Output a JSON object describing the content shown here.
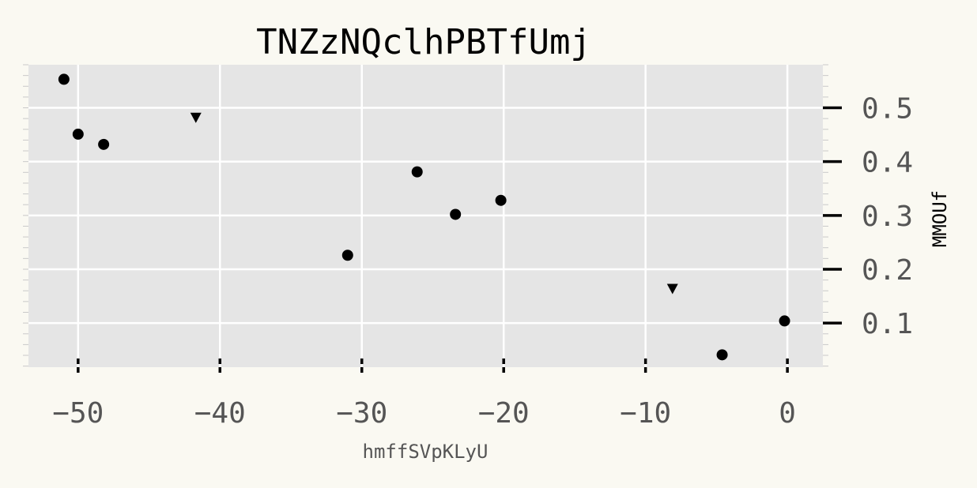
{
  "chart_data": {
    "type": "scatter",
    "title": "TNZzNQclhPBTfUmj",
    "xlabel": "hmffSVpKLyU",
    "ylabel": "MMOUf",
    "xlim": [
      -53.5,
      2.5
    ],
    "ylim": [
      0.018,
      0.58
    ],
    "xticks": [
      -50,
      -40,
      -30,
      -20,
      -10,
      0
    ],
    "xtick_labels": [
      "−50",
      "−40",
      "−30",
      "−20",
      "−10",
      "0"
    ],
    "yticks": [
      0.1,
      0.2,
      0.3,
      0.4,
      0.5
    ],
    "ytick_labels": [
      "0.1",
      "0.2",
      "0.3",
      "0.4",
      "0.5"
    ],
    "grid": true,
    "background_color": "#E5E5E5",
    "grid_color": "#FFFFFF",
    "marker_color": "#000000",
    "series": [
      {
        "marker": "circle",
        "x": [
          -51.0,
          -50.0,
          -48.2,
          -31.0,
          -26.1,
          -23.4,
          -20.2,
          -4.6,
          -0.2
        ],
        "y": [
          0.553,
          0.451,
          0.432,
          0.226,
          0.381,
          0.302,
          0.328,
          0.041,
          0.104
        ]
      },
      {
        "marker": "triangle-down",
        "x": [
          -41.7,
          -8.1
        ],
        "y": [
          0.482,
          0.164
        ]
      }
    ]
  }
}
